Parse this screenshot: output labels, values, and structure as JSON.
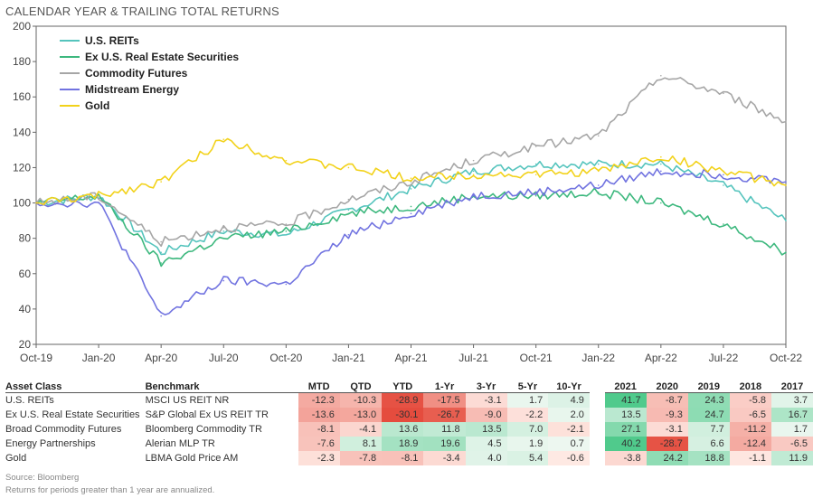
{
  "title": "CALENDAR YEAR & TRAILING TOTAL RETURNS",
  "chart_data": {
    "type": "line",
    "x": [
      "Oct-19",
      "Jan-20",
      "Apr-20",
      "Jul-20",
      "Oct-20",
      "Jan-21",
      "Apr-21",
      "Jul-21",
      "Oct-21",
      "Jan-22",
      "Apr-22",
      "Jul-22",
      "Oct-22"
    ],
    "ylim": [
      20,
      200
    ],
    "yticks": [
      20,
      40,
      60,
      80,
      100,
      120,
      140,
      160,
      180,
      200
    ],
    "grid": false,
    "legend_position": "top-left",
    "series": [
      {
        "name": "U.S. REITs",
        "color": "#55c4bd",
        "values": [
          100,
          104,
          72,
          84,
          82,
          96,
          108,
          118,
          122,
          122,
          122,
          110,
          90
        ]
      },
      {
        "name": "Ex U.S. Real Estate Securities",
        "color": "#3db87e",
        "values": [
          100,
          104,
          66,
          80,
          84,
          94,
          98,
          104,
          104,
          106,
          100,
          88,
          72
        ]
      },
      {
        "name": "Commodity Futures",
        "color": "#a6a6a6",
        "values": [
          100,
          104,
          78,
          86,
          88,
          102,
          112,
          124,
          132,
          138,
          172,
          162,
          146
        ]
      },
      {
        "name": "Midstream Energy",
        "color": "#7173e0",
        "values": [
          100,
          100,
          36,
          56,
          54,
          82,
          94,
          104,
          106,
          110,
          118,
          116,
          112
        ]
      },
      {
        "name": "Gold",
        "color": "#f2d21b",
        "values": [
          100,
          104,
          112,
          136,
          124,
          120,
          114,
          116,
          116,
          118,
          126,
          118,
          110
        ]
      }
    ]
  },
  "table": {
    "headers": [
      "Asset Class",
      "Benchmark",
      "MTD",
      "QTD",
      "YTD",
      "1-Yr",
      "3-Yr",
      "5-Yr",
      "10-Yr",
      "2021",
      "2020",
      "2019",
      "2018",
      "2017"
    ],
    "rows": [
      {
        "asset": "U.S. REITs",
        "bench": "MSCI US REIT NR",
        "vals": [
          "-12.3",
          "-10.3",
          "-28.9",
          "-17.5",
          "-3.1",
          "1.7",
          "4.9",
          "41.7",
          "-8.7",
          "24.3",
          "-5.8",
          "3.7"
        ]
      },
      {
        "asset": "Ex U.S. Real Estate Securities",
        "bench": "S&P Global Ex US REIT TR",
        "vals": [
          "-13.6",
          "-13.0",
          "-30.1",
          "-26.7",
          "-9.0",
          "-2.2",
          "2.0",
          "13.5",
          "-9.3",
          "24.7",
          "-6.5",
          "16.7"
        ]
      },
      {
        "asset": "Broad Commodity Futures",
        "bench": "Bloomberg Commodity TR",
        "vals": [
          "-8.1",
          "-4.1",
          "13.6",
          "11.8",
          "13.5",
          "7.0",
          "-2.1",
          "27.1",
          "-3.1",
          "7.7",
          "-11.2",
          "1.7"
        ]
      },
      {
        "asset": "Energy Partnerships",
        "bench": "Alerian MLP TR",
        "vals": [
          "-7.6",
          "8.1",
          "18.9",
          "19.6",
          "4.5",
          "1.9",
          "0.7",
          "40.2",
          "-28.7",
          "6.6",
          "-12.4",
          "-6.5"
        ]
      },
      {
        "asset": "Gold",
        "bench": "LBMA Gold Price AM",
        "vals": [
          "-2.3",
          "-7.8",
          "-8.1",
          "-3.4",
          "4.0",
          "5.4",
          "-0.6",
          "-3.8",
          "24.2",
          "18.8",
          "-1.1",
          "11.9"
        ]
      }
    ]
  },
  "footnotes": {
    "source": "Source: Bloomberg",
    "note": "Returns for periods greater than 1 year are annualized."
  }
}
